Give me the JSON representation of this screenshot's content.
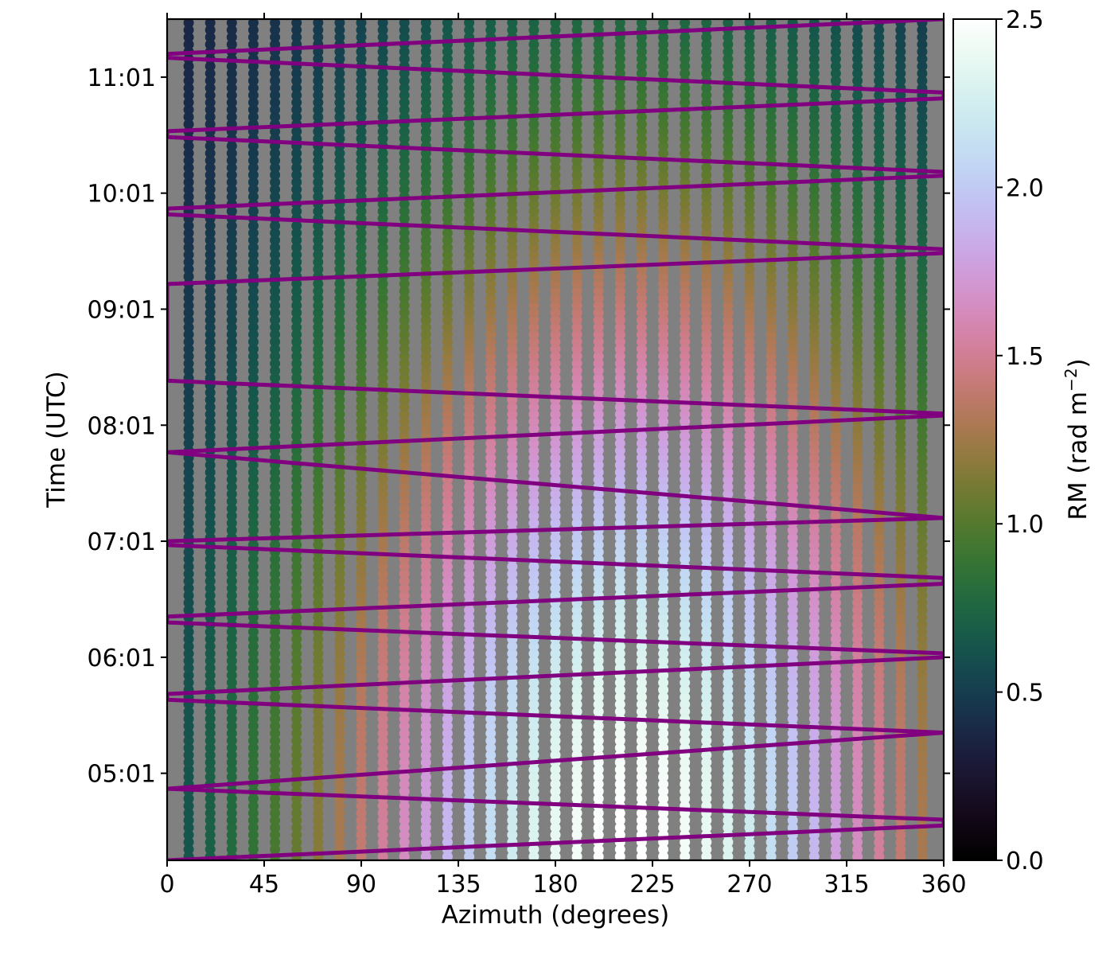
{
  "chart_data": {
    "type": "scatter",
    "title": "",
    "xlabel": "Azimuth (degrees)",
    "ylabel": "Time (UTC)",
    "xlim": [
      0,
      360
    ],
    "ylim": [
      "04:16",
      "11:31"
    ],
    "x_ticks": [
      0,
      45,
      90,
      135,
      180,
      225,
      270,
      315,
      360
    ],
    "y_ticks": [
      "05:01",
      "06:01",
      "07:01",
      "08:01",
      "09:01",
      "10:01",
      "11:01"
    ],
    "background_color": "#808080",
    "grid": false,
    "legend": "none",
    "colormap": "cubehelix",
    "colorbar": {
      "label": "RM (rad m",
      "label_sup": "−2",
      "label_close": ")",
      "min": 0.0,
      "max": 2.5,
      "ticks": [
        0.0,
        0.5,
        1.0,
        1.5,
        2.0,
        2.5
      ],
      "tick_labels": [
        "0.0",
        "0.5",
        "1.0",
        "1.5",
        "2.0",
        "2.5"
      ]
    },
    "dot_grid": {
      "azimuth_start": 10,
      "azimuth_step": 10,
      "azimuth_end": 350,
      "time_step_minutes": 3.75,
      "rm_model": {
        "peak_azimuth": 215,
        "peak_time": "04:16",
        "peak_rm": 2.5,
        "min_rm": 0.3,
        "note_free_fields_ignored": true
      }
    },
    "track": {
      "color": "#800080",
      "name": "",
      "vertices": [
        {
          "azimuth": 0,
          "time": "04:16"
        },
        {
          "azimuth": 360,
          "time": "04:34"
        },
        {
          "azimuth": 360,
          "time": "04:37"
        },
        {
          "azimuth": 0,
          "time": "04:53"
        },
        {
          "azimuth": 360,
          "time": "05:22"
        },
        {
          "azimuth": 0,
          "time": "05:39"
        },
        {
          "azimuth": 0,
          "time": "05:42"
        },
        {
          "azimuth": 360,
          "time": "06:01"
        },
        {
          "azimuth": 360,
          "time": "06:03"
        },
        {
          "azimuth": 0,
          "time": "06:19"
        },
        {
          "azimuth": 0,
          "time": "06:22"
        },
        {
          "azimuth": 360,
          "time": "06:39"
        },
        {
          "azimuth": 360,
          "time": "06:42"
        },
        {
          "azimuth": 0,
          "time": "06:59"
        },
        {
          "azimuth": 0,
          "time": "07:01"
        },
        {
          "azimuth": 360,
          "time": "07:13"
        },
        {
          "azimuth": 0,
          "time": "07:47"
        },
        {
          "azimuth": 360,
          "time": "08:06"
        },
        {
          "azimuth": 360,
          "time": "08:07"
        },
        {
          "azimuth": 0,
          "time": "08:24"
        },
        {
          "azimuth": 0,
          "time": "09:14"
        },
        {
          "azimuth": 360,
          "time": "09:30"
        },
        {
          "azimuth": 360,
          "time": "09:32"
        },
        {
          "azimuth": 0,
          "time": "09:50"
        },
        {
          "azimuth": 0,
          "time": "09:53"
        },
        {
          "azimuth": 360,
          "time": "10:10"
        },
        {
          "azimuth": 360,
          "time": "10:12"
        },
        {
          "azimuth": 0,
          "time": "10:30"
        },
        {
          "azimuth": 0,
          "time": "10:33"
        },
        {
          "azimuth": 360,
          "time": "10:50"
        },
        {
          "azimuth": 360,
          "time": "10:53"
        },
        {
          "azimuth": 0,
          "time": "11:11"
        },
        {
          "azimuth": 0,
          "time": "11:13"
        },
        {
          "azimuth": 360,
          "time": "11:31"
        }
      ]
    }
  }
}
